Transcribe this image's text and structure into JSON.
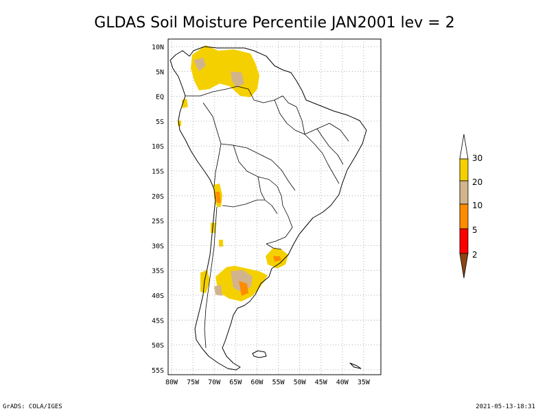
{
  "title": "GLDAS Soil Moisture Percentile JAN2001 lev = 2",
  "footer": {
    "left": "GrADS: COLA/IGES",
    "right": "2021-05-13-18:31"
  },
  "axes": {
    "lon_labels": [
      "80W",
      "75W",
      "70W",
      "65W",
      "60W",
      "55W",
      "50W",
      "45W",
      "40W",
      "35W"
    ],
    "lat_labels": [
      "10N",
      "5N",
      "EQ",
      "5S",
      "10S",
      "15S",
      "20S",
      "25S",
      "30S",
      "35S",
      "40S",
      "45S",
      "50S",
      "55S"
    ]
  },
  "legend": {
    "labels": [
      "30",
      "20",
      "10",
      "5",
      "2"
    ],
    "colors": {
      "above_30": "#ffffff",
      "20_30": "#f5d000",
      "10_20": "#d2b48c",
      "5_10": "#ff8c00",
      "2_5": "#ff0000",
      "below_2": "#8b4513"
    }
  },
  "colors": {
    "band_20_30": "#f5d000",
    "band_10_20": "#d2b48c",
    "band_5_10": "#ff8c00",
    "band_2_5": "#ff0000"
  }
}
